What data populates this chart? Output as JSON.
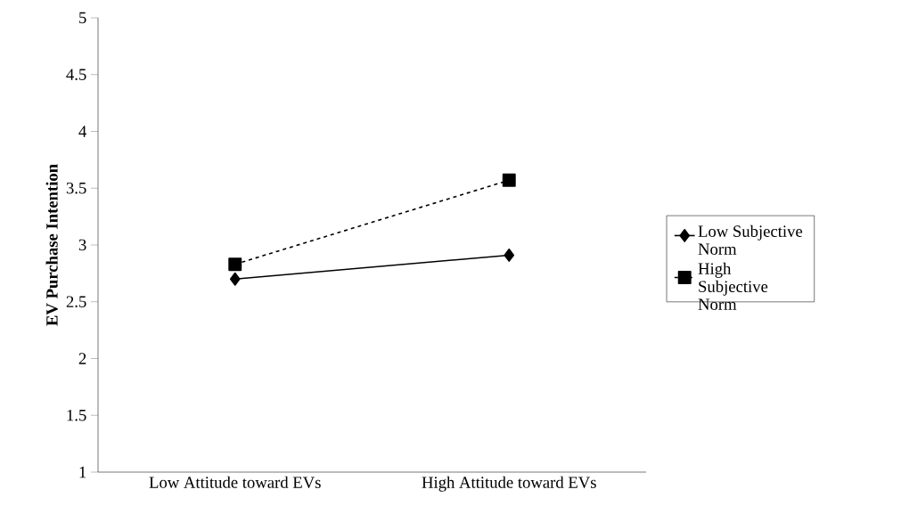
{
  "chart_data": {
    "type": "line",
    "ylabel": "EV Purchase Intention",
    "categories": [
      "Low Attitude toward EVs",
      "High Attitude toward EVs"
    ],
    "series": [
      {
        "name": "Low Subjective Norm",
        "color": "#000000",
        "values": [
          2.7,
          2.91
        ],
        "marker": "diamond",
        "line_style": "solid"
      },
      {
        "name": "High Subjective Norm",
        "color": "#000000",
        "values": [
          2.83,
          3.57
        ],
        "marker": "square",
        "line_style": "dashed"
      }
    ],
    "ylim": [
      1,
      5
    ],
    "yticks": [
      1,
      1.5,
      2,
      2.5,
      3,
      3.5,
      4,
      4.5,
      5
    ],
    "legend": "right",
    "grid": false
  }
}
